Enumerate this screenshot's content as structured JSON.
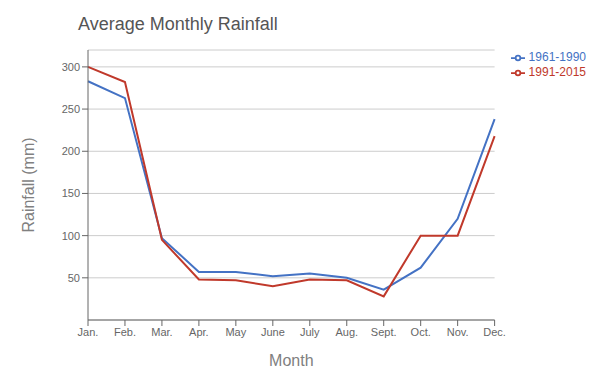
{
  "chart_data": {
    "type": "line",
    "title": "Average Monthly Rainfall",
    "xlabel": "Month",
    "ylabel": "Rainfall (mm)",
    "categories": [
      "Jan.",
      "Feb.",
      "Mar.",
      "Apr.",
      "May",
      "June",
      "July",
      "Aug.",
      "Sept.",
      "Oct.",
      "Nov.",
      "Dec."
    ],
    "series": [
      {
        "name": "1961-1990",
        "color": "#4472C4",
        "values": [
          283,
          263,
          97,
          57,
          57,
          52,
          55,
          50,
          36,
          62,
          120,
          238
        ]
      },
      {
        "name": "1991-2015",
        "color": "#C0392B",
        "values": [
          300,
          282,
          95,
          48,
          47,
          40,
          48,
          47,
          28,
          100,
          100,
          218
        ]
      }
    ],
    "ylim": [
      0,
      320
    ],
    "yticks": [
      50,
      100,
      150,
      200,
      250,
      300
    ],
    "grid": true,
    "legend": "right"
  }
}
